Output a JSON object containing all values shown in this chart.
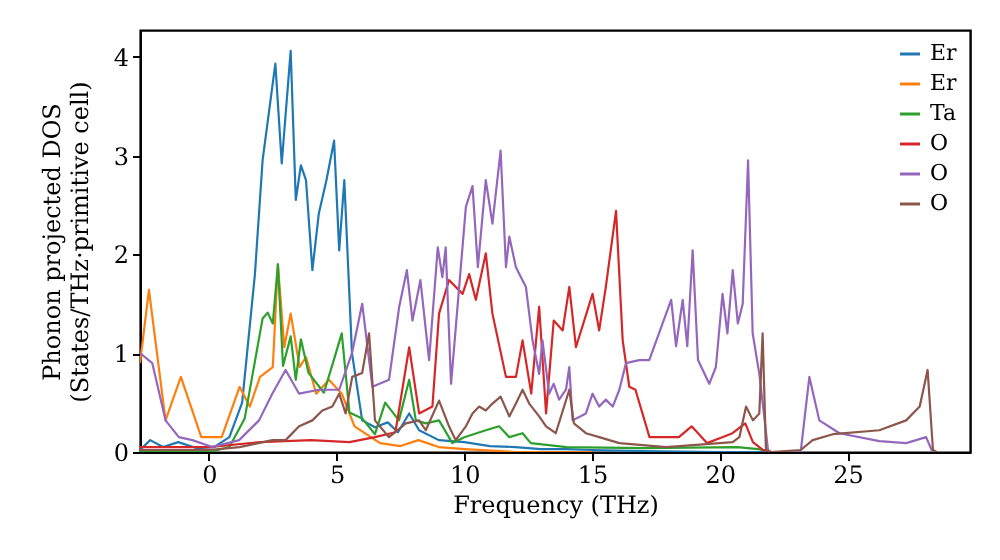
{
  "chart_data": {
    "type": "line",
    "xlabel": "Frequency (THz)",
    "ylabel": "Phonon projected DOS\n(States/THz·primitive cell)",
    "xlim": [
      -2.7,
      29.8
    ],
    "ylim": [
      0,
      4.27
    ],
    "xticks": [
      0,
      5,
      10,
      15,
      20,
      25
    ],
    "yticks": [
      0,
      1,
      2,
      3,
      4
    ],
    "grid": false,
    "legend": "top right",
    "marker": "none",
    "line_style": "solid",
    "series": [
      {
        "name": "Er",
        "color": "#1f77b4",
        "x": [
          -2.7,
          -2.3,
          -1.8,
          -1.2,
          -0.5,
          0.2,
          0.8,
          1.3,
          1.8,
          2.1,
          2.6,
          2.85,
          3.2,
          3.4,
          3.6,
          3.8,
          4.05,
          4.3,
          4.6,
          4.9,
          5.1,
          5.3,
          5.6,
          6.0,
          6.5,
          7.0,
          7.4,
          7.84,
          8.23,
          9.0,
          10.0,
          11.0,
          12.0,
          13.0,
          14.0,
          15.0,
          17.0,
          20.0,
          22.0
        ],
        "values": [
          0.02,
          0.12,
          0.05,
          0.1,
          0.04,
          0.05,
          0.15,
          0.5,
          1.8,
          2.95,
          3.93,
          2.92,
          4.06,
          2.55,
          2.9,
          2.75,
          1.84,
          2.41,
          2.75,
          3.15,
          2.04,
          2.75,
          1.0,
          0.32,
          0.25,
          0.3,
          0.2,
          0.39,
          0.22,
          0.12,
          0.1,
          0.06,
          0.05,
          0.03,
          0.03,
          0.02,
          0.01,
          0,
          0
        ]
      },
      {
        "name": "Er",
        "color": "#ff7f0e",
        "x": [
          -2.7,
          -2.35,
          -1.7,
          -1.1,
          -0.3,
          0.5,
          1.2,
          1.6,
          2.0,
          2.5,
          2.7,
          2.95,
          3.2,
          3.55,
          3.8,
          4.2,
          4.7,
          5.2,
          5.7,
          6.7,
          7.5,
          8.2,
          9.0,
          10.0,
          12.0,
          15.0
        ],
        "values": [
          0.9,
          1.64,
          0.32,
          0.76,
          0.15,
          0.15,
          0.66,
          0.46,
          0.76,
          0.86,
          1.9,
          1.06,
          1.4,
          0.86,
          0.96,
          0.59,
          0.73,
          0.59,
          0.26,
          0.09,
          0.06,
          0.12,
          0.05,
          0.03,
          0,
          0
        ]
      },
      {
        "name": "Ta",
        "color": "#2ca02c",
        "x": [
          -2.7,
          0,
          0.8,
          1.4,
          2.1,
          2.3,
          2.5,
          2.7,
          2.9,
          3.2,
          3.4,
          3.6,
          3.9,
          4.5,
          4.9,
          5.2,
          5.5,
          6.0,
          6.5,
          6.9,
          7.44,
          7.84,
          8.1,
          8.49,
          9.01,
          9.53,
          10.0,
          10.84,
          11.36,
          11.76,
          12.28,
          12.6,
          14.0,
          17.0,
          20.7,
          21.5,
          22.0
        ],
        "values": [
          0,
          0,
          0.05,
          0.34,
          1.35,
          1.41,
          1.3,
          1.9,
          0.87,
          1.17,
          0.73,
          1.14,
          0.8,
          0.6,
          0.94,
          1.2,
          0.4,
          0.34,
          0.18,
          0.5,
          0.32,
          0.73,
          0.32,
          0.29,
          0.32,
          0.09,
          0.15,
          0.22,
          0.26,
          0.15,
          0.19,
          0.09,
          0.05,
          0.04,
          0.05,
          0.03,
          0
        ]
      },
      {
        "name": "O",
        "color": "#d62728",
        "x": [
          -2.7,
          0,
          2.0,
          4.0,
          5.5,
          6.5,
          7.3,
          7.84,
          8.23,
          8.75,
          9.01,
          9.4,
          9.93,
          10.19,
          10.45,
          10.84,
          11.1,
          11.63,
          12.02,
          12.28,
          12.62,
          12.93,
          13.2,
          13.5,
          13.85,
          14.11,
          14.37,
          15.02,
          15.28,
          15.54,
          15.94,
          16.2,
          16.46,
          16.7,
          17.25,
          17.9,
          18.4,
          18.9,
          19.5,
          20.1,
          20.5,
          21.0,
          21.3,
          21.7,
          22.0
        ],
        "values": [
          0.05,
          0.05,
          0.1,
          0.12,
          0.1,
          0.15,
          0.2,
          1.06,
          0.39,
          0.46,
          1.4,
          1.74,
          1.6,
          1.8,
          1.54,
          2.01,
          1.4,
          0.76,
          0.76,
          1.13,
          0.59,
          1.47,
          0.39,
          1.33,
          1.23,
          1.67,
          1.06,
          1.6,
          1.23,
          1.67,
          2.44,
          1.13,
          0.66,
          0.63,
          0.15,
          0.15,
          0.15,
          0.26,
          0.09,
          0.15,
          0.19,
          0.29,
          0.1,
          0.02,
          0
        ]
      },
      {
        "name": "O",
        "color": "#9467bd",
        "x": [
          -2.7,
          -2.22,
          -1.7,
          -1.18,
          -0.65,
          0.13,
          1.18,
          1.96,
          2.48,
          3.0,
          3.53,
          4.3,
          5.1,
          5.6,
          6.0,
          6.4,
          7.05,
          7.45,
          7.75,
          7.97,
          8.28,
          8.62,
          8.96,
          9.14,
          9.27,
          9.48,
          10.06,
          10.32,
          10.53,
          10.84,
          11.1,
          11.42,
          11.63,
          11.76,
          12.02,
          12.41,
          12.67,
          12.93,
          13.06,
          13.32,
          13.5,
          13.71,
          13.98,
          14.11,
          14.24,
          14.76,
          15.02,
          15.28,
          15.54,
          15.81,
          16.07,
          16.33,
          16.85,
          17.24,
          17.76,
          18.1,
          18.29,
          18.55,
          18.73,
          18.94,
          19.15,
          19.59,
          19.85,
          20.11,
          20.3,
          20.51,
          20.71,
          20.9,
          21.11,
          21.29,
          21.55,
          21.76,
          21.89,
          22.0,
          23.17,
          23.51,
          23.9,
          24.69,
          26.25,
          27.3,
          28.08,
          28.3,
          28.4
        ],
        "values": [
          1.0,
          0.9,
          0.32,
          0.15,
          0.12,
          0.05,
          0.12,
          0.32,
          0.59,
          0.83,
          0.59,
          0.63,
          0.63,
          1.0,
          1.5,
          0.66,
          0.73,
          1.47,
          1.84,
          1.33,
          1.74,
          0.93,
          2.07,
          1.77,
          2.07,
          0.69,
          2.48,
          2.69,
          1.87,
          2.75,
          2.31,
          3.05,
          1.87,
          2.18,
          1.87,
          1.67,
          1.13,
          0.79,
          1.13,
          0.59,
          0.69,
          0.53,
          0.63,
          0.86,
          0.32,
          0.39,
          0.59,
          0.46,
          0.53,
          0.46,
          0.63,
          0.9,
          0.93,
          0.93,
          1.3,
          1.54,
          1.07,
          1.54,
          1.07,
          2.04,
          0.93,
          0.69,
          0.86,
          1.6,
          1.2,
          1.84,
          1.3,
          1.5,
          2.95,
          1.2,
          0.79,
          0.32,
          0.02,
          0,
          0,
          0.76,
          0.32,
          0.19,
          0.11,
          0.09,
          0.15,
          0.02,
          0
        ]
      },
      {
        "name": "O",
        "color": "#8c564b",
        "x": [
          -2.7,
          0,
          1.2,
          2.48,
          3.0,
          3.53,
          4.05,
          4.44,
          4.83,
          5.1,
          5.35,
          5.61,
          6.0,
          6.27,
          6.5,
          7.05,
          7.71,
          8.23,
          8.49,
          9.01,
          9.4,
          9.66,
          10.06,
          10.32,
          10.58,
          10.84,
          11.1,
          11.42,
          11.76,
          12.02,
          12.28,
          12.54,
          12.93,
          13.2,
          13.58,
          14.11,
          14.29,
          14.76,
          15.28,
          16.07,
          17.9,
          20.51,
          20.77,
          21.03,
          21.3,
          21.55,
          21.68,
          21.81,
          22.0,
          23.17,
          23.64,
          24.43,
          26.25,
          27.3,
          27.83,
          28.14,
          28.35,
          28.5
        ],
        "values": [
          0.02,
          0.02,
          0.05,
          0.12,
          0.12,
          0.26,
          0.32,
          0.42,
          0.46,
          0.59,
          0.39,
          0.76,
          0.8,
          1.2,
          0.32,
          0.15,
          0.29,
          0.32,
          0.22,
          0.52,
          0.26,
          0.12,
          0.26,
          0.39,
          0.46,
          0.42,
          0.49,
          0.56,
          0.36,
          0.49,
          0.63,
          0.49,
          0.36,
          0.26,
          0.19,
          0.63,
          0.29,
          0.19,
          0.15,
          0.09,
          0.05,
          0.1,
          0.15,
          0.46,
          0.32,
          0.39,
          1.2,
          0.02,
          0,
          0.02,
          0.12,
          0.18,
          0.22,
          0.32,
          0.46,
          0.83,
          0.02,
          0
        ]
      }
    ]
  }
}
